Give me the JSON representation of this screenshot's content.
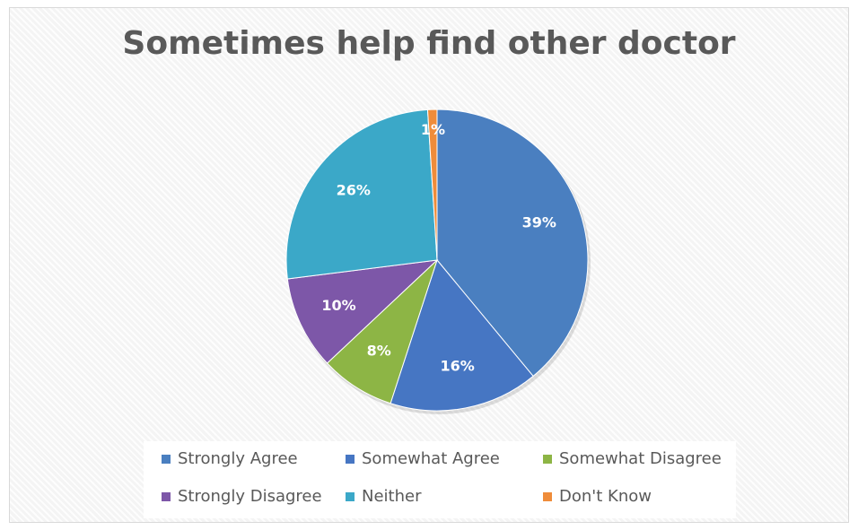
{
  "chart_data": {
    "type": "pie",
    "title": "Sometimes help find other doctor",
    "slices": [
      {
        "name": "Strongly Agree",
        "value": 39,
        "label": "39%",
        "color": "#4a7fc0"
      },
      {
        "name": "Somewhat Agree",
        "value": 16,
        "label": "16%",
        "color": "#4676c3"
      },
      {
        "name": "Somewhat Disagree",
        "value": 8,
        "label": "8%",
        "color": "#8db545"
      },
      {
        "name": "Strongly Disagree",
        "value": 10,
        "label": "10%",
        "color": "#7d57a8"
      },
      {
        "name": "Neither",
        "value": 26,
        "label": "26%",
        "color": "#3ba8c8"
      },
      {
        "name": "Don't Know",
        "value": 1,
        "label": "1%",
        "color": "#ef8c3a"
      }
    ],
    "start_angle_deg": 0,
    "direction": "clockwise",
    "legend_position": "bottom"
  }
}
